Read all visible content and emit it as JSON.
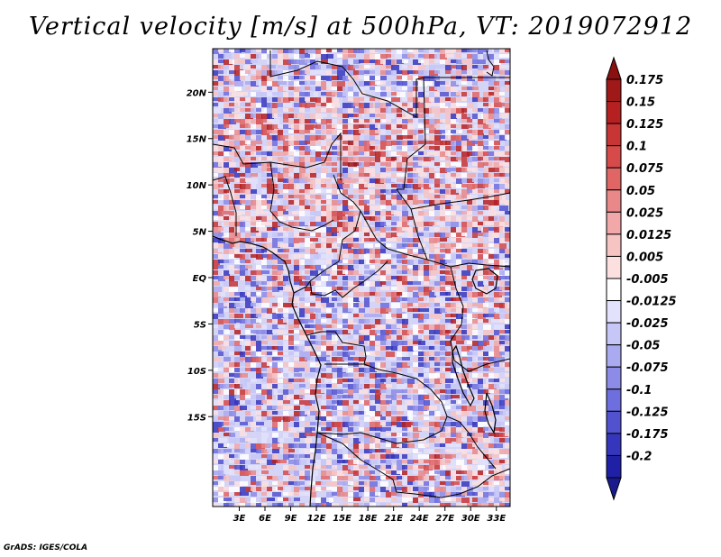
{
  "title": "Vertical velocity [m/s] at 500hPa, VT: 2019072912",
  "credit": "GrADS: IGES/COLA",
  "map": {
    "lat_range": [
      -24.7,
      24.7
    ],
    "lon_range": [
      -0.1,
      34.6
    ],
    "lat_labels": [
      {
        "value": 20,
        "label": "20N"
      },
      {
        "value": 15,
        "label": "15N"
      },
      {
        "value": 10,
        "label": "10N"
      },
      {
        "value": 5,
        "label": "5N"
      },
      {
        "value": 0,
        "label": "EQ"
      },
      {
        "value": -5,
        "label": "5S"
      },
      {
        "value": -10,
        "label": "10S"
      },
      {
        "value": -15,
        "label": "15S"
      }
    ],
    "lon_labels": [
      {
        "value": 3,
        "label": "3E"
      },
      {
        "value": 6,
        "label": "6E"
      },
      {
        "value": 9,
        "label": "9E"
      },
      {
        "value": 12,
        "label": "12E"
      },
      {
        "value": 15,
        "label": "15E"
      },
      {
        "value": 18,
        "label": "18E"
      },
      {
        "value": 21,
        "label": "21E"
      },
      {
        "value": 24,
        "label": "24E"
      },
      {
        "value": 27,
        "label": "27E"
      },
      {
        "value": 30,
        "label": "30E"
      },
      {
        "value": 33,
        "label": "33E"
      }
    ]
  },
  "colorbar": {
    "levels": [
      {
        "label": "0.175",
        "color": "#a01919"
      },
      {
        "label": "0.15",
        "color": "#b52020"
      },
      {
        "label": "0.125",
        "color": "#c73535"
      },
      {
        "label": "0.1",
        "color": "#d64a4a"
      },
      {
        "label": "0.075",
        "color": "#e06666"
      },
      {
        "label": "0.05",
        "color": "#e98888"
      },
      {
        "label": "0.025",
        "color": "#f2a8a8"
      },
      {
        "label": "0.0125",
        "color": "#f7c4c4"
      },
      {
        "label": "0.005",
        "color": "#fce0e0"
      },
      {
        "label": "-0.005",
        "color": "#ffffff"
      },
      {
        "label": "-0.0125",
        "color": "#e2e2fc"
      },
      {
        "label": "-0.025",
        "color": "#c7c7f7"
      },
      {
        "label": "-0.05",
        "color": "#aaaaf0"
      },
      {
        "label": "-0.075",
        "color": "#8c8ce8"
      },
      {
        "label": "-0.1",
        "color": "#6e6ede"
      },
      {
        "label": "-0.125",
        "color": "#5252cf"
      },
      {
        "label": "-0.175",
        "color": "#3636bd"
      },
      {
        "label": "-0.2",
        "color": "#2020a6"
      }
    ],
    "top_arrow_color": "#8b1010",
    "bottom_arrow_color": "#1a1a8e"
  },
  "colors": {
    "land_base": "#d4d4f6",
    "ocean_base": "#c9c9f2",
    "border": "#000000"
  }
}
